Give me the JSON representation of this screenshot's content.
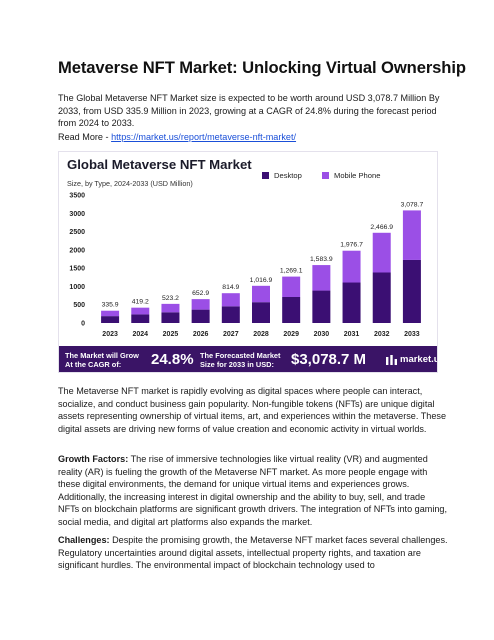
{
  "document": {
    "title": "Metaverse NFT Market: Unlocking Virtual Ownership",
    "intro": "The Global Metaverse NFT Market size is expected to be worth around USD 3,078.7 Million By 2033, from USD 335.9 Million in 2023, growing at a CAGR of 24.8% during the forecast period from 2024 to 2033.",
    "read_more_label": "Read More - ",
    "read_more_link": "https://market.us/report/metaverse-nft-market/",
    "para1": "The Metaverse NFT market is rapidly evolving as digital spaces where people can interact, socialize, and conduct business gain popularity. Non-fungible tokens (NFTs) are unique digital assets representing ownership of virtual items, art, and experiences within the metaverse. These digital assets are driving new forms of value creation and economic activity in virtual worlds.",
    "growth_heading": "Growth Factors:",
    "growth_text": " The rise of immersive technologies like virtual reality (VR) and augmented reality (AR) is fueling the growth of the Metaverse NFT market. As more people engage with these digital environments, the demand for unique virtual items and experiences grows. Additionally, the increasing interest in digital ownership and the ability to buy, sell, and trade NFTs on blockchain platforms are significant growth drivers. The integration of NFTs into gaming, social media, and digital art platforms also expands the market.",
    "challenges_heading": "Challenges:",
    "challenges_text": " Despite the promising growth, the Metaverse NFT market faces several challenges. Regulatory uncertainties around digital assets, intellectual property rights, and taxation are significant hurdles. The environmental impact of blockchain technology used to"
  },
  "infographic": {
    "banner_cagr_label_1": "The Market will Grow",
    "banner_cagr_label_2": "At the CAGR of:",
    "banner_cagr_value": "24.8%",
    "banner_size_label_1": "The Forecasted Market",
    "banner_size_label_2": "Size for 2033 in USD:",
    "banner_size_value": "$3,078.7 M",
    "logo_text": "market.us"
  },
  "chart_data": {
    "type": "bar",
    "title": "Global Metaverse NFT Market",
    "subtitle": "Size, by Type, 2024-2033 (USD Million)",
    "categories": [
      "2023",
      "2024",
      "2025",
      "2026",
      "2027",
      "2028",
      "2029",
      "2030",
      "2031",
      "2032",
      "2033"
    ],
    "totals": [
      335.9,
      419.2,
      523.2,
      652.9,
      814.9,
      1016.9,
      1269.1,
      1583.9,
      1976.7,
      2466.9,
      3078.7
    ],
    "total_labels": [
      "335.9",
      "419.2",
      "523.2",
      "652.9",
      "814.9",
      "1,016.9",
      "1,269.1",
      "1,583.9",
      "1,976.7",
      "2,466.9",
      "3,078.7"
    ],
    "series": [
      {
        "name": "Desktop",
        "color": "#3b0f73",
        "values": [
          188,
          235,
          293,
          366,
          456,
          569,
          711,
          887,
          1107,
          1381,
          1724
        ]
      },
      {
        "name": "Mobile Phone",
        "color": "#9b4fe6",
        "values": [
          147.9,
          184.2,
          230.2,
          286.9,
          358.9,
          447.9,
          558.1,
          696.9,
          869.7,
          1085.9,
          1354.7
        ]
      }
    ],
    "yticks": [
      0,
      500,
      1000,
      1500,
      2000,
      2500,
      3000,
      3500
    ],
    "ylim": [
      0,
      3500
    ],
    "stacked": true,
    "legend_position": "top-right",
    "grid": false
  }
}
